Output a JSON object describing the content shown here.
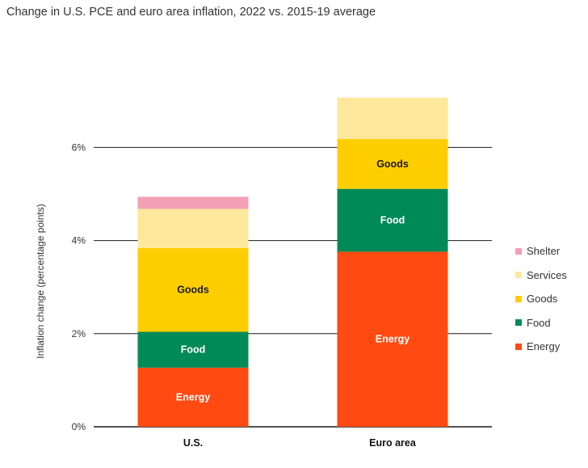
{
  "chart_data": {
    "type": "bar",
    "stacked": true,
    "title": "Change in U.S. PCE and euro area inflation, 2022 vs. 2015-19 average",
    "ylabel": "Inflation change (percentage points)",
    "xlabel": "",
    "ylim": [
      0,
      7.4
    ],
    "yticks": [
      0,
      2,
      4,
      6
    ],
    "ytick_labels": [
      "0%",
      "2%",
      "4%",
      "6%"
    ],
    "grid": "horizontal",
    "legend_position": "right",
    "categories": [
      "U.S.",
      "Euro area"
    ],
    "series": [
      {
        "name": "Energy",
        "color": "#ff4a12",
        "values": [
          1.27,
          3.76
        ],
        "labels": [
          "Energy",
          "Energy"
        ]
      },
      {
        "name": "Food",
        "color": "#008a58",
        "values": [
          0.77,
          1.35
        ],
        "labels": [
          "Food",
          "Food"
        ]
      },
      {
        "name": "Goods",
        "color": "#ffce00",
        "values": [
          1.8,
          1.07
        ],
        "labels": [
          "Goods",
          "Goods"
        ]
      },
      {
        "name": "Services",
        "color": "#fde89b",
        "values": [
          0.84,
          0.89
        ],
        "labels": [
          "",
          ""
        ]
      },
      {
        "name": "Shelter",
        "color": "#f3a0b5",
        "values": [
          0.26,
          0.0
        ],
        "labels": [
          "",
          ""
        ]
      }
    ],
    "legend_order": [
      "Shelter",
      "Services",
      "Goods",
      "Food",
      "Energy"
    ]
  }
}
